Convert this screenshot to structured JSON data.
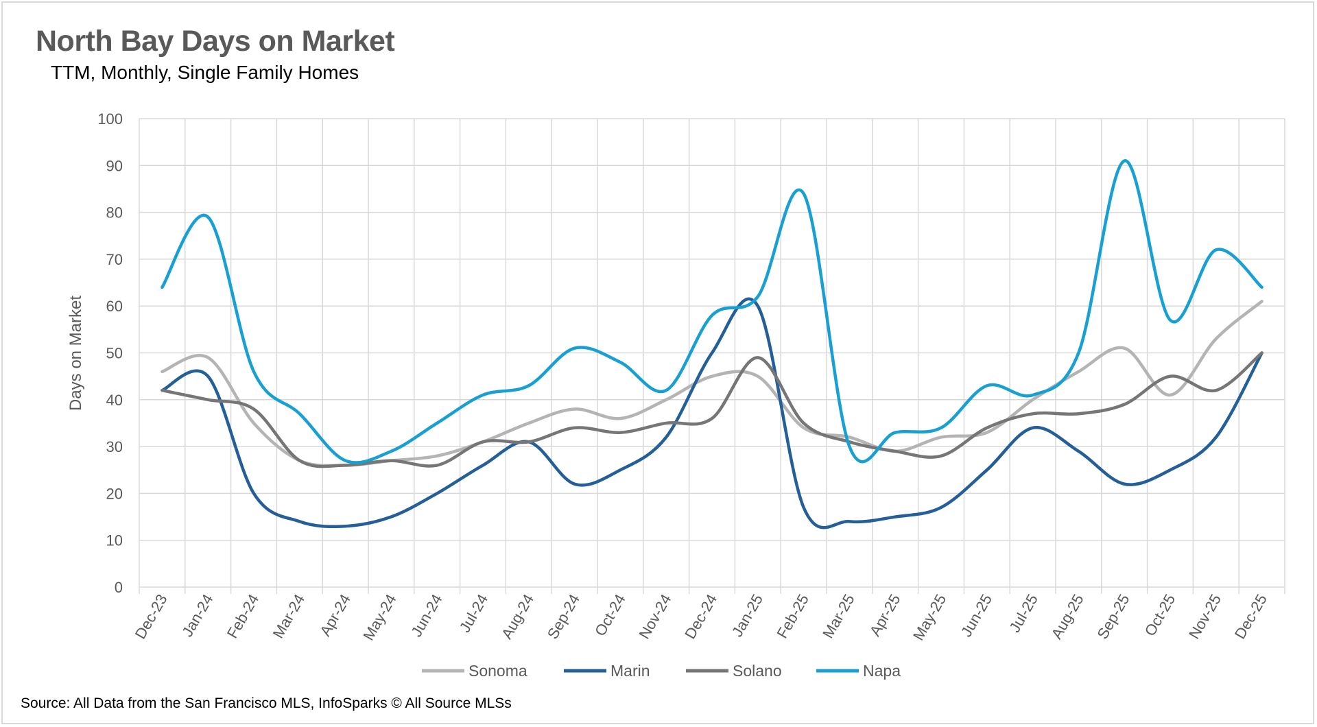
{
  "chart_data": {
    "type": "line",
    "title": "North Bay Days on Market",
    "subtitle": "TTM, Monthly, Single Family Homes",
    "xlabel": "",
    "ylabel": "Days on Market",
    "ylim": [
      0,
      100
    ],
    "yticks": [
      0,
      10,
      20,
      30,
      40,
      50,
      60,
      70,
      80,
      90,
      100
    ],
    "grid": true,
    "smooth": true,
    "legend_position": "bottom",
    "categories": [
      "Dec-23",
      "Jan-24",
      "Feb-24",
      "Mar-24",
      "Apr-24",
      "May-24",
      "Jun-24",
      "Jul-24",
      "Aug-24",
      "Sep-24",
      "Oct-24",
      "Nov-24",
      "Dec-24",
      "Jan-25",
      "Feb-25",
      "Mar-25",
      "Apr-25",
      "May-25",
      "Jun-25",
      "Jul-25",
      "Aug-25",
      "Sep-25",
      "Oct-25",
      "Nov-25",
      "Dec-25"
    ],
    "series": [
      {
        "name": "Sonoma",
        "color": "#b4b4b4",
        "values": [
          46,
          49,
          35,
          27,
          26,
          27,
          28,
          31,
          35,
          38,
          36,
          40,
          45,
          45,
          34,
          32,
          29,
          32,
          33,
          40,
          46,
          51,
          41,
          53,
          61
        ]
      },
      {
        "name": "Marin",
        "color": "#245f98",
        "values": [
          42,
          45,
          20,
          14,
          13,
          15,
          20,
          26,
          31,
          22,
          25,
          32,
          50,
          60,
          17,
          14,
          15,
          17,
          25,
          34,
          29,
          22,
          25,
          32,
          50
        ]
      },
      {
        "name": "Solano",
        "color": "#767676",
        "values": [
          42,
          40,
          38,
          27,
          26,
          27,
          26,
          31,
          31,
          34,
          33,
          35,
          36,
          49,
          35,
          31,
          29,
          28,
          34,
          37,
          37,
          39,
          45,
          42,
          50
        ]
      },
      {
        "name": "Napa",
        "color": "#18a0d3",
        "values": [
          64,
          79,
          46,
          37,
          27,
          29,
          35,
          41,
          43,
          51,
          48,
          42,
          58,
          62,
          84,
          30,
          33,
          34,
          43,
          41,
          50,
          91,
          57,
          72,
          64
        ]
      }
    ]
  },
  "source": "Source: All Data from the San Francisco MLS, InfoSparks © All Source MLSs"
}
